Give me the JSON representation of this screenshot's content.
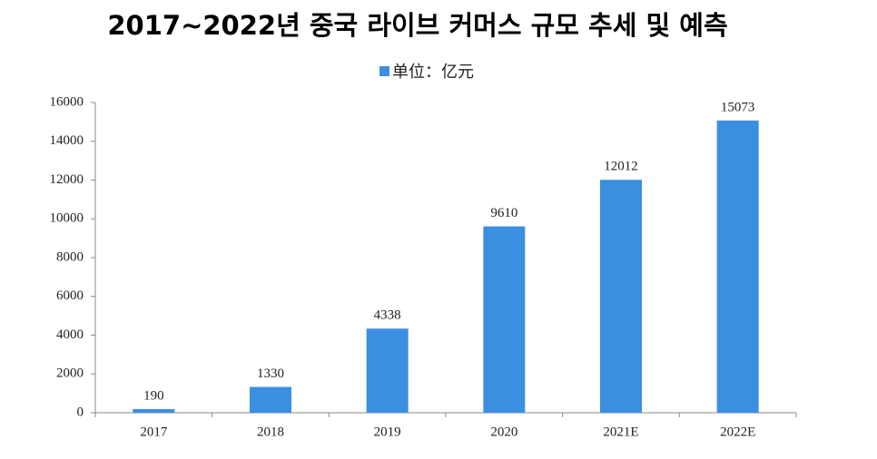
{
  "chart_data": {
    "type": "bar",
    "title": "2017~2022년 중국 라이브 커머스 규모 추세 및 예측",
    "categories": [
      "2017",
      "2018",
      "2019",
      "2020",
      "2021E",
      "2022E"
    ],
    "series": [
      {
        "name": "单位：亿元",
        "color": "#3b8fe0",
        "values": [
          190,
          1330,
          4338,
          9610,
          12012,
          15073
        ]
      }
    ],
    "ylim": [
      0,
      16000
    ],
    "yticks": [
      0,
      2000,
      4000,
      6000,
      8000,
      10000,
      12000,
      14000,
      16000
    ],
    "grid": false,
    "legend": "top"
  }
}
